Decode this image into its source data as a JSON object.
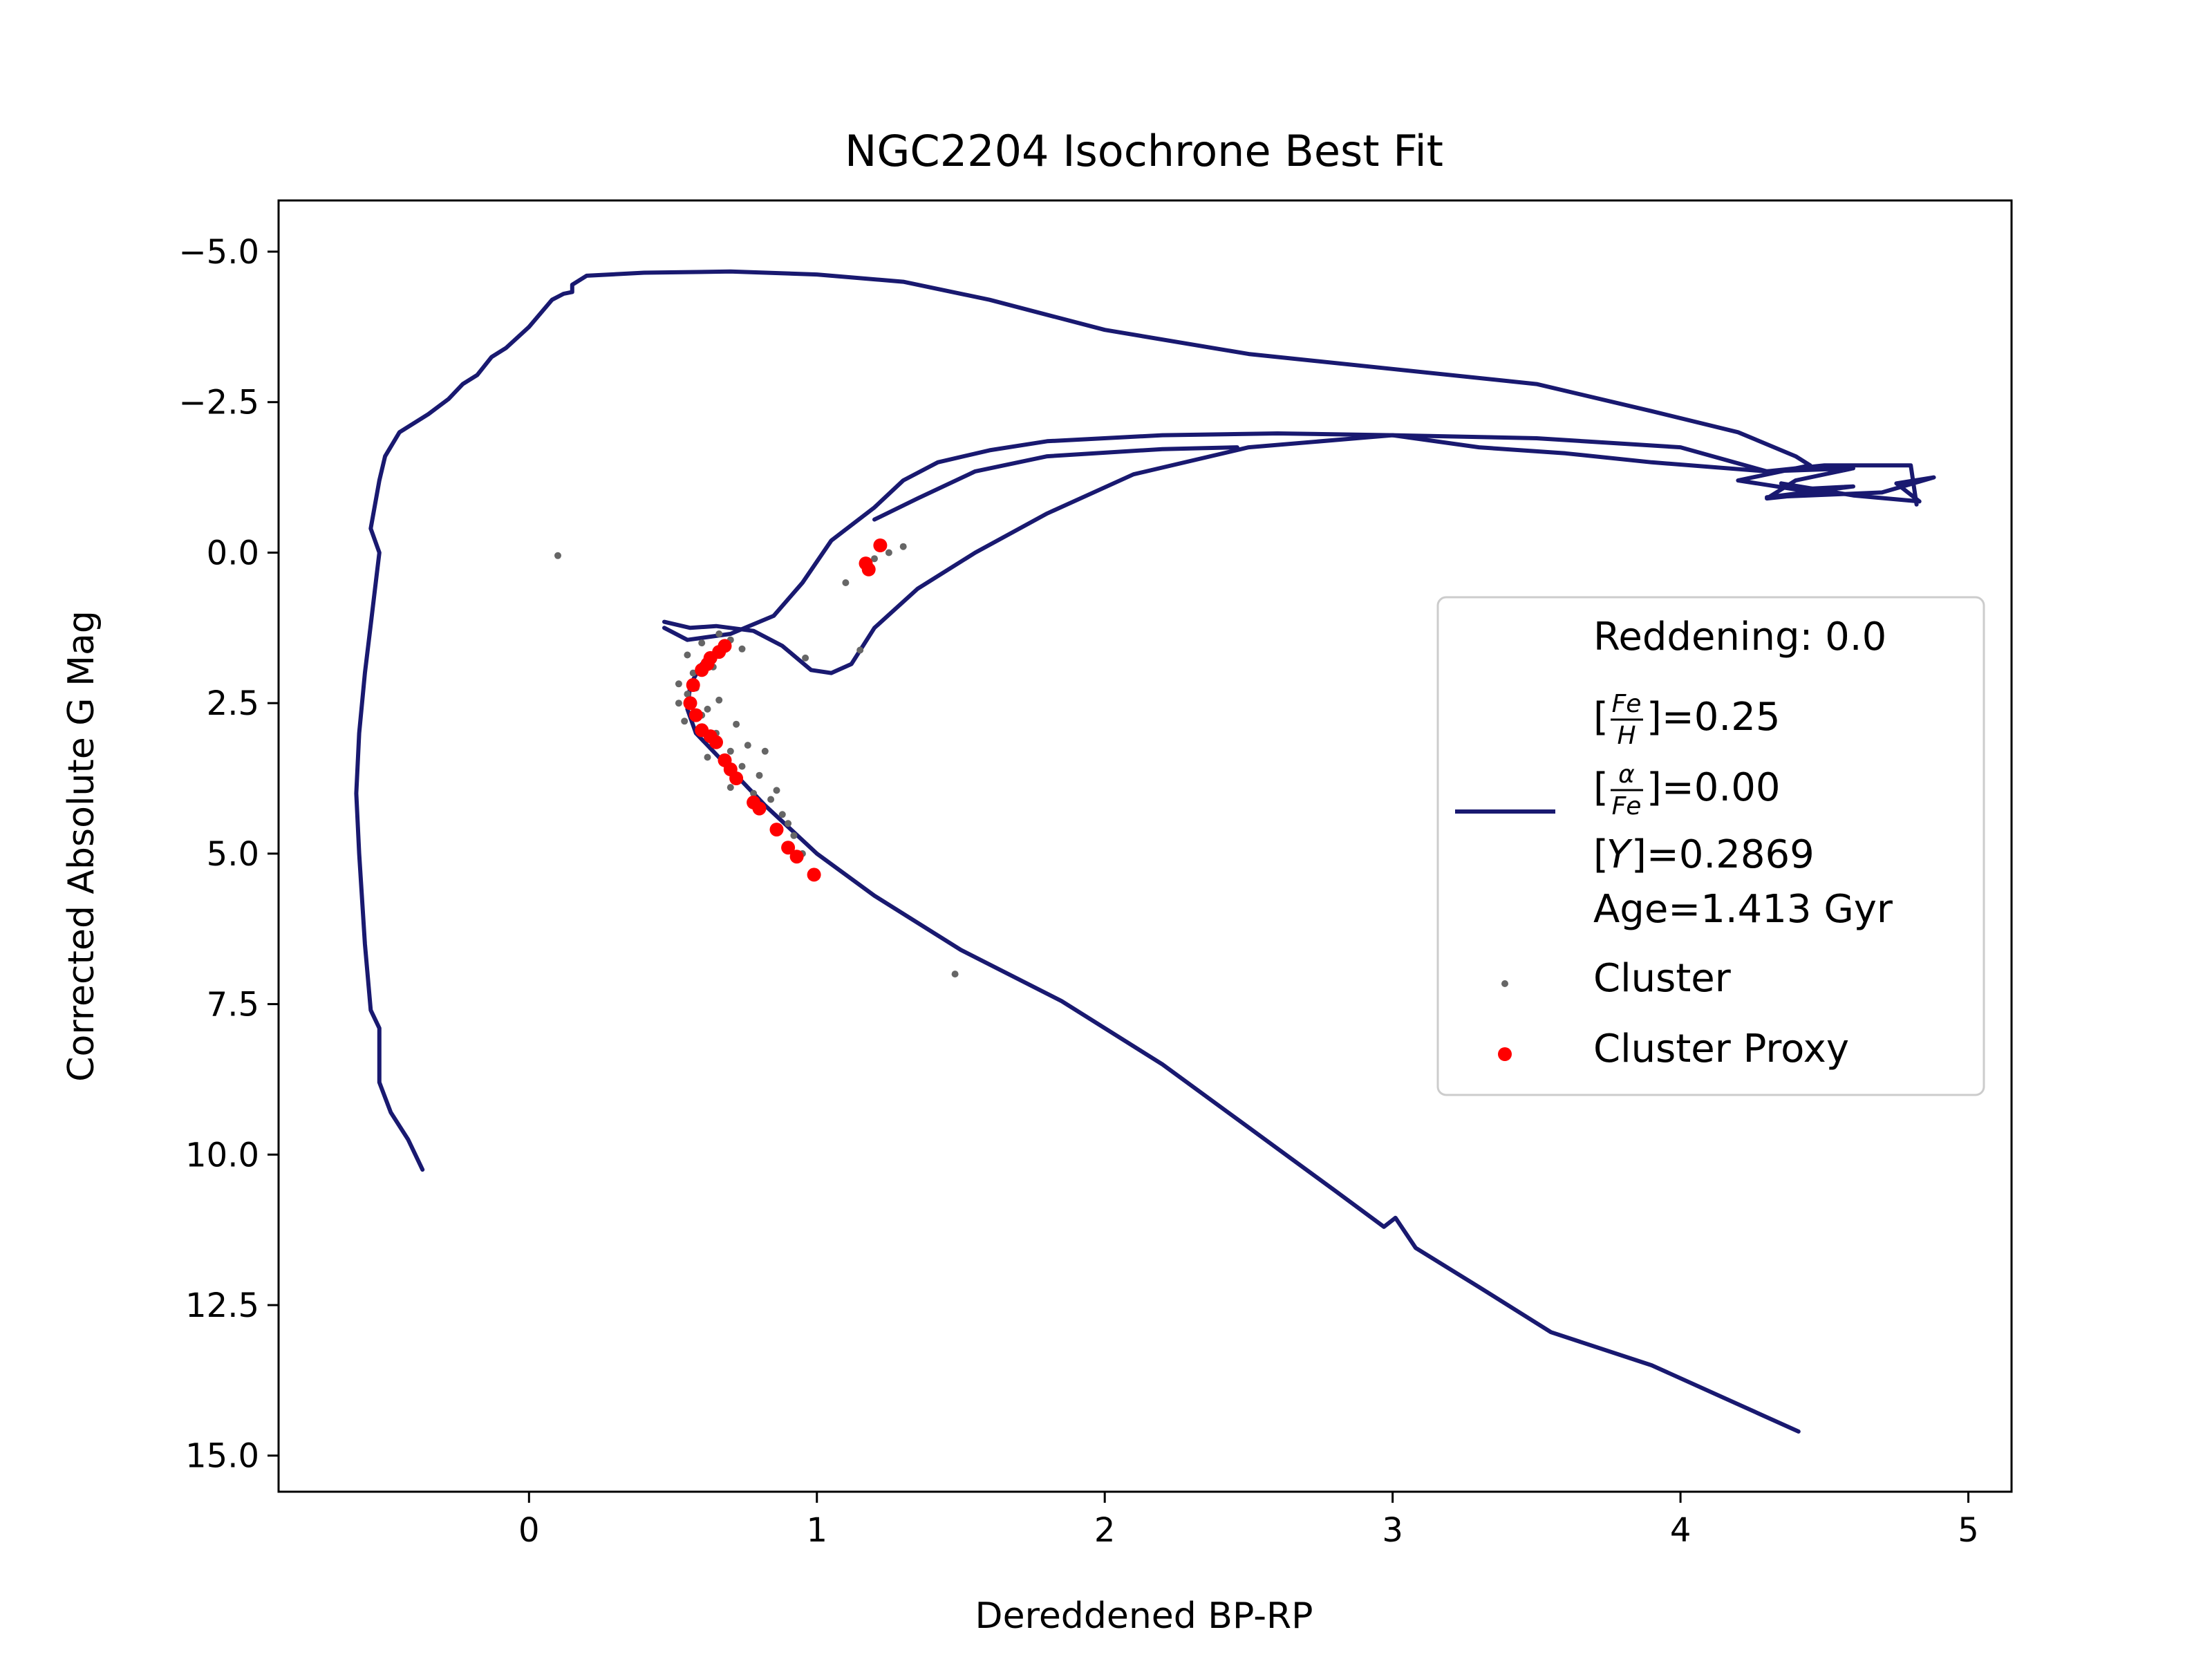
{
  "chart_data": {
    "type": "scatter",
    "title": "NGC2204 Isochrone Best Fit",
    "xlabel": "Dereddened BP-RP",
    "ylabel": "Corrected Absolute G Mag",
    "xlim": [
      -0.87,
      5.15
    ],
    "ylim": [
      15.6,
      -5.85
    ],
    "y_inverted": true,
    "grid": false,
    "legend_position": "right",
    "x_ticks": [
      {
        "value": 0,
        "label": "0"
      },
      {
        "value": 1,
        "label": "1"
      },
      {
        "value": 2,
        "label": "2"
      },
      {
        "value": 3,
        "label": "3"
      },
      {
        "value": 4,
        "label": "4"
      },
      {
        "value": 5,
        "label": "5"
      }
    ],
    "y_ticks": [
      {
        "value": -5,
        "label": "−5.0"
      },
      {
        "value": -2.5,
        "label": "−2.5"
      },
      {
        "value": 0,
        "label": "0.0"
      },
      {
        "value": 2.5,
        "label": "2.5"
      },
      {
        "value": 5,
        "label": "5.0"
      },
      {
        "value": 7.5,
        "label": "7.5"
      },
      {
        "value": 10,
        "label": "10.0"
      },
      {
        "value": 12.5,
        "label": "12.5"
      },
      {
        "value": 15,
        "label": "15.0"
      }
    ],
    "legend": {
      "reddening": "Reddening: 0.0",
      "feh_num": "Fe",
      "feh_den": "H",
      "feh_value": "]=0.25",
      "afe_num": "α",
      "afe_den": "Fe",
      "afe_value": "]=0.00",
      "y_symbol": "Y",
      "y_value": "]=0.2869",
      "age": "Age=1.413 Gyr",
      "cluster": "Cluster",
      "proxy": "Cluster Proxy"
    },
    "series": [
      {
        "kind": "line",
        "color": "#191970",
        "segments": [
          [
            [
              -0.37,
              10.25
            ],
            [
              -0.42,
              9.75
            ],
            [
              -0.48,
              9.3
            ],
            [
              -0.52,
              8.8
            ],
            [
              -0.52,
              7.9
            ],
            [
              -0.55,
              7.6
            ],
            [
              -0.57,
              6.5
            ],
            [
              -0.59,
              5.0
            ],
            [
              -0.6,
              4.0
            ],
            [
              -0.59,
              3.0
            ],
            [
              -0.57,
              2.0
            ],
            [
              -0.55,
              1.2
            ],
            [
              -0.53,
              0.4
            ],
            [
              -0.52,
              0.0
            ],
            [
              -0.55,
              -0.4
            ],
            [
              -0.52,
              -1.2
            ],
            [
              -0.5,
              -1.6
            ],
            [
              -0.45,
              -2.0
            ],
            [
              -0.35,
              -2.3
            ],
            [
              -0.28,
              -2.55
            ],
            [
              -0.23,
              -2.8
            ],
            [
              -0.18,
              -2.95
            ],
            [
              -0.13,
              -3.25
            ],
            [
              -0.08,
              -3.4
            ],
            [
              0.0,
              -3.75
            ],
            [
              0.08,
              -4.2
            ],
            [
              0.12,
              -4.3
            ],
            [
              0.15,
              -4.33
            ],
            [
              0.15,
              -4.45
            ],
            [
              0.2,
              -4.6
            ],
            [
              0.4,
              -4.65
            ],
            [
              0.7,
              -4.67
            ],
            [
              1.0,
              -4.62
            ],
            [
              1.3,
              -4.5
            ],
            [
              1.6,
              -4.2
            ],
            [
              2.0,
              -3.7
            ],
            [
              2.5,
              -3.3
            ],
            [
              3.0,
              -3.05
            ],
            [
              3.5,
              -2.8
            ],
            [
              3.9,
              -2.35
            ],
            [
              4.2,
              -2.0
            ],
            [
              4.4,
              -1.6
            ],
            [
              4.45,
              -1.45
            ]
          ],
          [
            [
              4.45,
              -1.45
            ],
            [
              4.2,
              -1.2
            ],
            [
              4.4,
              -1.05
            ],
            [
              4.6,
              -1.1
            ],
            [
              4.3,
              -0.92
            ],
            [
              4.7,
              -1.0
            ],
            [
              4.88,
              -1.25
            ],
            [
              4.75,
              -1.15
            ],
            [
              4.83,
              -0.85
            ],
            [
              4.6,
              -0.95
            ],
            [
              4.35,
              -1.15
            ],
            [
              4.5,
              -1.0
            ],
            [
              4.3,
              -0.9
            ],
            [
              4.4,
              -1.2
            ],
            [
              4.6,
              -1.4
            ],
            [
              4.3,
              -1.35
            ],
            [
              3.9,
              -1.5
            ],
            [
              3.6,
              -1.65
            ],
            [
              3.3,
              -1.75
            ],
            [
              3.0,
              -1.95
            ],
            [
              2.6,
              -1.98
            ],
            [
              2.2,
              -1.95
            ],
            [
              1.8,
              -1.85
            ],
            [
              1.6,
              -1.7
            ],
            [
              1.42,
              -1.5
            ],
            [
              1.3,
              -1.2
            ],
            [
              1.2,
              -0.75
            ],
            [
              1.05,
              -0.2
            ],
            [
              0.95,
              0.5
            ],
            [
              0.85,
              1.05
            ],
            [
              0.7,
              1.35
            ],
            [
              0.55,
              1.45
            ],
            [
              0.47,
              1.25
            ]
          ],
          [
            [
              1.2,
              -0.55
            ],
            [
              1.35,
              -0.9
            ],
            [
              1.55,
              -1.35
            ],
            [
              1.8,
              -1.6
            ],
            [
              2.2,
              -1.72
            ],
            [
              2.46,
              -1.75
            ]
          ],
          [
            [
              0.47,
              1.15
            ],
            [
              0.56,
              1.25
            ],
            [
              0.65,
              1.22
            ],
            [
              0.78,
              1.3
            ],
            [
              0.88,
              1.55
            ],
            [
              0.98,
              1.95
            ],
            [
              1.05,
              2.0
            ],
            [
              1.12,
              1.85
            ],
            [
              1.2,
              1.25
            ],
            [
              1.35,
              0.6
            ],
            [
              1.55,
              0.0
            ],
            [
              1.8,
              -0.65
            ],
            [
              2.1,
              -1.3
            ],
            [
              2.5,
              -1.75
            ],
            [
              3.0,
              -1.95
            ],
            [
              3.5,
              -1.9
            ],
            [
              4.0,
              -1.75
            ],
            [
              4.3,
              -1.35
            ],
            [
              4.5,
              -1.45
            ],
            [
              4.8,
              -1.45
            ],
            [
              4.82,
              -0.8
            ]
          ],
          [
            [
              0.68,
              1.6
            ],
            [
              0.6,
              1.85
            ],
            [
              0.56,
              2.2
            ],
            [
              0.55,
              2.6
            ],
            [
              0.58,
              3.0
            ],
            [
              0.68,
              3.5
            ],
            [
              0.82,
              4.2
            ],
            [
              1.0,
              5.0
            ],
            [
              1.2,
              5.7
            ],
            [
              1.5,
              6.6
            ],
            [
              1.85,
              7.45
            ],
            [
              2.2,
              8.5
            ],
            [
              2.5,
              9.55
            ],
            [
              2.8,
              10.6
            ],
            [
              2.97,
              11.2
            ],
            [
              3.01,
              11.05
            ],
            [
              3.08,
              11.55
            ],
            [
              3.3,
              12.2
            ],
            [
              3.55,
              12.95
            ],
            [
              3.9,
              13.5
            ],
            [
              4.41,
              14.6
            ]
          ]
        ]
      },
      {
        "name": "Cluster",
        "kind": "scatter",
        "color": "#666666",
        "points": [
          [
            0.1,
            0.05
          ],
          [
            1.48,
            7.0
          ],
          [
            1.1,
            0.5
          ],
          [
            0.96,
            1.75
          ],
          [
            1.15,
            1.62
          ],
          [
            0.52,
            2.18
          ],
          [
            0.55,
            2.35
          ],
          [
            0.52,
            2.5
          ],
          [
            0.57,
            2.0
          ],
          [
            0.6,
            2.7
          ],
          [
            0.65,
            3.0
          ],
          [
            0.7,
            3.3
          ],
          [
            0.74,
            3.55
          ],
          [
            0.8,
            3.7
          ],
          [
            0.86,
            3.95
          ],
          [
            0.88,
            4.35
          ],
          [
            0.92,
            4.7
          ],
          [
            0.95,
            5.0
          ],
          [
            0.6,
            1.5
          ],
          [
            0.66,
            1.35
          ],
          [
            1.2,
            0.1
          ],
          [
            1.25,
            0.0
          ],
          [
            1.3,
            -0.1
          ],
          [
            0.55,
            1.7
          ],
          [
            0.58,
            2.25
          ],
          [
            0.62,
            2.6
          ],
          [
            0.66,
            2.45
          ],
          [
            0.72,
            2.85
          ],
          [
            0.76,
            3.2
          ],
          [
            0.82,
            3.3
          ],
          [
            0.84,
            4.1
          ],
          [
            0.9,
            4.5
          ],
          [
            0.54,
            2.8
          ],
          [
            0.62,
            3.4
          ],
          [
            0.7,
            3.9
          ],
          [
            0.78,
            4.0
          ],
          [
            0.64,
            1.9
          ],
          [
            0.7,
            1.45
          ],
          [
            0.74,
            1.6
          ]
        ]
      },
      {
        "name": "Cluster Proxy",
        "kind": "scatter",
        "color": "#ff0000",
        "points": [
          [
            1.22,
            -0.12
          ],
          [
            1.18,
            0.28
          ],
          [
            1.17,
            0.18
          ],
          [
            0.68,
            1.55
          ],
          [
            0.63,
            1.75
          ],
          [
            0.6,
            1.95
          ],
          [
            0.57,
            2.2
          ],
          [
            0.56,
            2.5
          ],
          [
            0.58,
            2.7
          ],
          [
            0.6,
            2.95
          ],
          [
            0.63,
            3.05
          ],
          [
            0.65,
            3.15
          ],
          [
            0.68,
            3.45
          ],
          [
            0.7,
            3.6
          ],
          [
            0.72,
            3.75
          ],
          [
            0.78,
            4.15
          ],
          [
            0.8,
            4.25
          ],
          [
            0.86,
            4.6
          ],
          [
            0.9,
            4.9
          ],
          [
            0.93,
            5.05
          ],
          [
            0.99,
            5.35
          ],
          [
            0.62,
            1.85
          ],
          [
            0.66,
            1.65
          ]
        ]
      }
    ]
  }
}
